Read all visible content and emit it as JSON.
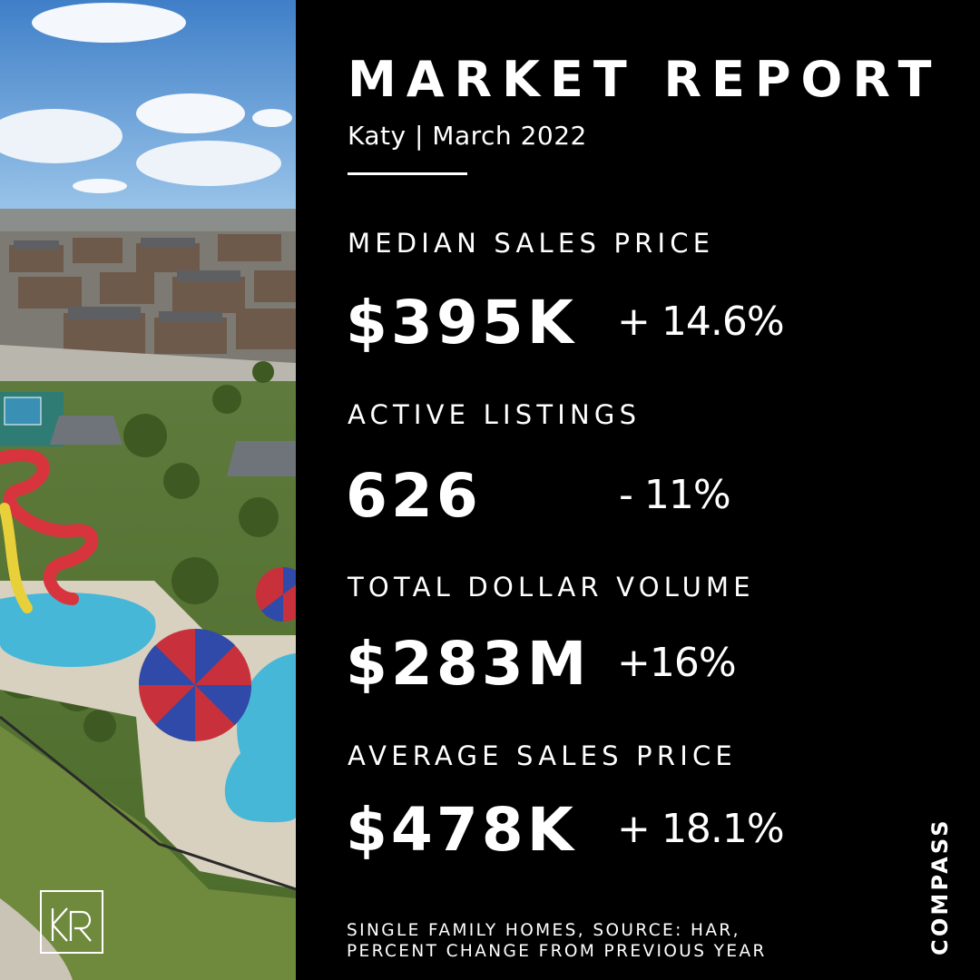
{
  "report": {
    "title": "MARKET REPORT",
    "subtitle": "Katy | March 2022"
  },
  "metrics": [
    {
      "label": "MEDIAN SALES PRICE",
      "value": "$395K",
      "change": "+ 14.6%"
    },
    {
      "label": "ACTIVE LISTINGS",
      "value": "626",
      "change": "- 11%"
    },
    {
      "label": "TOTAL DOLLAR VOLUME",
      "value": "$283M",
      "change": "+16%"
    },
    {
      "label": "AVERAGE SALES PRICE",
      "value": "$478K",
      "change": "+ 18.1%"
    }
  ],
  "footnote": {
    "line1": "SINGLE FAMILY HOMES, SOURCE: HAR,",
    "line2": "PERCENT CHANGE FROM PREVIOUS YEAR"
  },
  "brand": "COMPASS",
  "agent_logo": "KR",
  "colors": {
    "background": "#000000",
    "text": "#ffffff"
  }
}
